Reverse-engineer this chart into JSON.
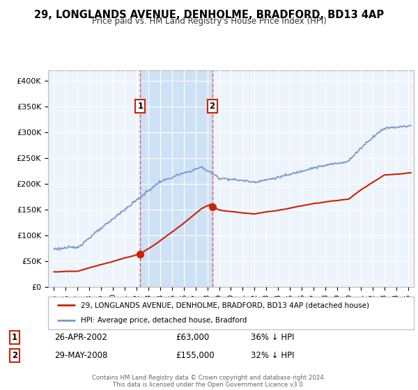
{
  "title": "29, LONGLANDS AVENUE, DENHOLME, BRADFORD, BD13 4AP",
  "subtitle": "Price paid vs. HM Land Registry's House Price Index (HPI)",
  "ylabel_ticks": [
    "£0",
    "£50K",
    "£100K",
    "£150K",
    "£200K",
    "£250K",
    "£300K",
    "£350K",
    "£400K"
  ],
  "ytick_values": [
    0,
    50000,
    100000,
    150000,
    200000,
    250000,
    300000,
    350000,
    400000
  ],
  "ylim": [
    0,
    420000
  ],
  "xlim_start": 1994.5,
  "xlim_end": 2025.5,
  "hpi_color": "#7799cc",
  "price_color": "#cc2200",
  "vline_color": "#dd4444",
  "shade_color": "#ccdff5",
  "background_color": "#eef4fb",
  "figure_bg": "#ffffff",
  "legend_label_price": "29, LONGLANDS AVENUE, DENHOLME, BRADFORD, BD13 4AP (detached house)",
  "legend_label_hpi": "HPI: Average price, detached house, Bradford",
  "sale1_date": "26-APR-2002",
  "sale1_price": "£63,000",
  "sale1_hpi": "36% ↓ HPI",
  "sale1_year": 2002.32,
  "sale1_value": 63000,
  "sale2_date": "29-MAY-2008",
  "sale2_price": "£155,000",
  "sale2_hpi": "32% ↓ HPI",
  "sale2_year": 2008.41,
  "sale2_value": 155000,
  "footer": "Contains HM Land Registry data © Crown copyright and database right 2024.\nThis data is licensed under the Open Government Licence v3.0.",
  "xtick_years": [
    1995,
    1996,
    1997,
    1998,
    1999,
    2000,
    2001,
    2002,
    2003,
    2004,
    2005,
    2006,
    2007,
    2008,
    2009,
    2010,
    2011,
    2012,
    2013,
    2014,
    2015,
    2016,
    2017,
    2018,
    2019,
    2020,
    2021,
    2022,
    2023,
    2024,
    2025
  ]
}
